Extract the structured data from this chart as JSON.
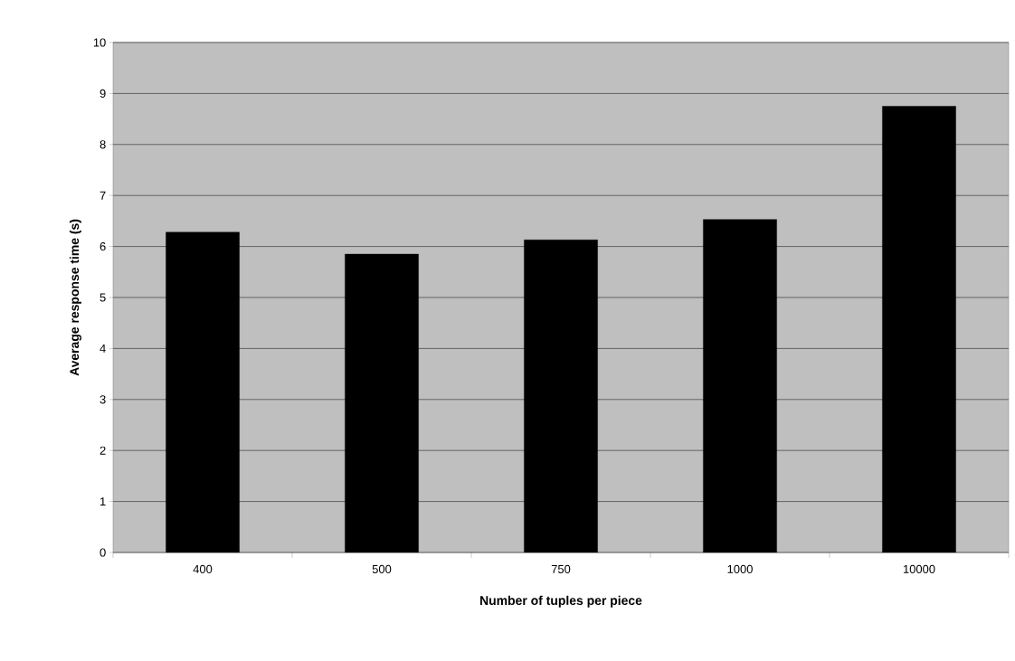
{
  "chart_data": {
    "type": "bar",
    "xlabel": "Number of tuples per piece",
    "ylabel": "Average response time (s)",
    "categories": [
      "400",
      "500",
      "750",
      "1000",
      "10000"
    ],
    "values": [
      6.28,
      5.85,
      6.13,
      6.53,
      8.75
    ],
    "color": "#000000",
    "ylim": [
      0,
      10
    ],
    "yticks": [
      0,
      1,
      2,
      3,
      4,
      5,
      6,
      7,
      8,
      9,
      10
    ],
    "grid": "y"
  }
}
